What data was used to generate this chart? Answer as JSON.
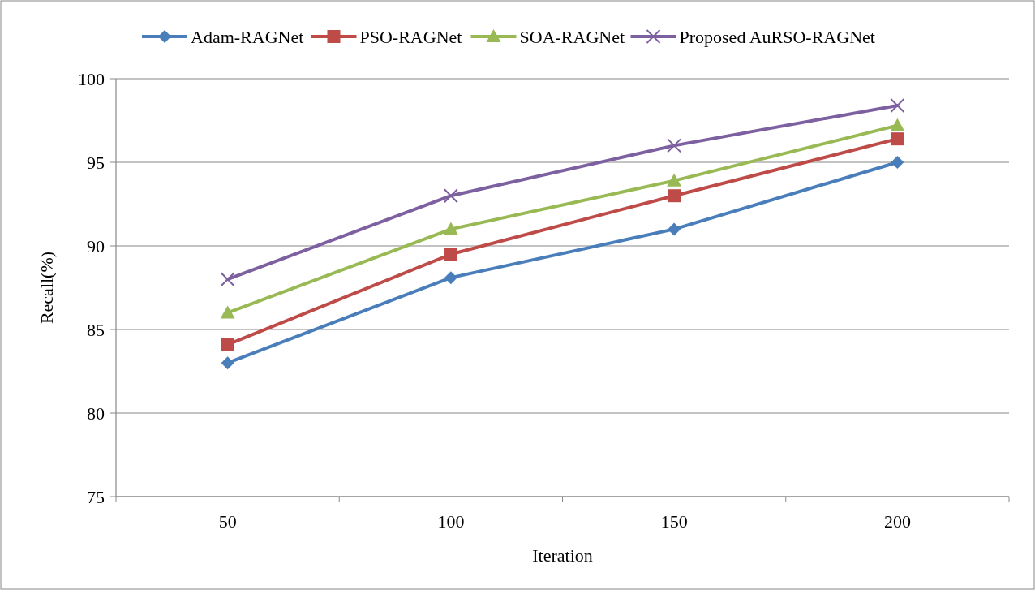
{
  "chart_data": {
    "type": "line",
    "xlabel": "Iteration",
    "ylabel": "Recall(%)",
    "categories": [
      "50",
      "100",
      "150",
      "200"
    ],
    "ylim": [
      75,
      100
    ],
    "yticks": [
      75,
      80,
      85,
      90,
      95,
      100
    ],
    "grid": "y",
    "legend": "top",
    "series": [
      {
        "name": "Adam-RAGNet",
        "color": "#4a7ebb",
        "marker": "diamond",
        "values": [
          83,
          88.1,
          91,
          95
        ]
      },
      {
        "name": "PSO-RAGNet",
        "color": "#be4b48",
        "marker": "square",
        "values": [
          84.1,
          89.5,
          93,
          96.4
        ]
      },
      {
        "name": "SOA-RAGNet",
        "color": "#98b954",
        "marker": "triangle",
        "values": [
          86,
          91,
          93.9,
          97.2
        ]
      },
      {
        "name": "Proposed AuRSO-RAGNet",
        "color": "#7d60a0",
        "marker": "cross",
        "values": [
          88,
          93,
          96,
          98.4
        ]
      }
    ]
  }
}
